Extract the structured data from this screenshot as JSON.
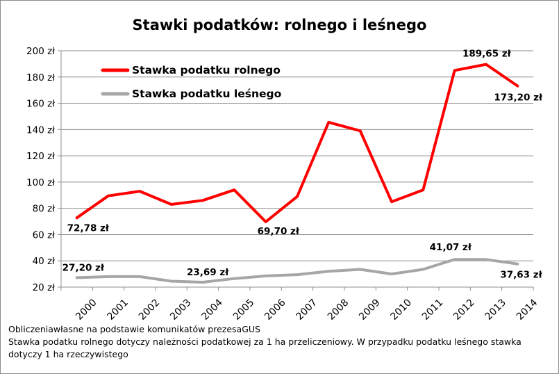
{
  "chart_data": {
    "type": "line",
    "title": "Stawki podatków: rolnego i leśnego",
    "xlabel": "",
    "ylabel": "",
    "categories": [
      "2000",
      "2001",
      "2002",
      "2003",
      "2004",
      "2005",
      "2006",
      "2007",
      "2008",
      "2009",
      "2010",
      "2011",
      "2012",
      "2013",
      "2014"
    ],
    "ylim": [
      20,
      200
    ],
    "yticks": [
      "20 zł",
      "40 zł",
      "60 zł",
      "80 zł",
      "100 zł",
      "120 zł",
      "140 zł",
      "160 zł",
      "180 zł",
      "200 zł"
    ],
    "grid": true,
    "legend_position": "top-left",
    "series": [
      {
        "name": "Stawka podatku rolnego",
        "color": "#ff0000",
        "values": [
          72.78,
          89.5,
          93,
          83,
          86,
          94,
          69.7,
          89,
          145.5,
          139,
          85,
          94,
          185,
          189.65,
          173.2
        ],
        "labels": [
          {
            "index": 0,
            "text": "72,78 zł"
          },
          {
            "index": 6,
            "text": "69,70 zł"
          },
          {
            "index": 13,
            "text": "189,65 zł"
          },
          {
            "index": 14,
            "text": "173,20 zł"
          }
        ]
      },
      {
        "name": "Stawka podatku leśnego",
        "color": "#a6a6a6",
        "values": [
          27.2,
          28,
          28,
          24.5,
          23.69,
          26.5,
          28.5,
          29.5,
          32,
          33.5,
          30,
          33.5,
          41.07,
          41,
          37.63
        ],
        "labels": [
          {
            "index": 0,
            "text": "27,20 zł"
          },
          {
            "index": 4,
            "text": "23,69 zł"
          },
          {
            "index": 12,
            "text": "41,07 zł"
          },
          {
            "index": 14,
            "text": "37,63 zł"
          }
        ]
      }
    ]
  },
  "notes": {
    "line1": "Obliczeniawłasne na podstawie komunikatów prezesaGUS",
    "line2": "Stawka podatku rolnego dotyczy należności podatkowej za 1 ha przeliczeniowy. W przypadku podatku leśnego stawka",
    "line3": "dotyczy 1 ha rzeczywistego"
  }
}
